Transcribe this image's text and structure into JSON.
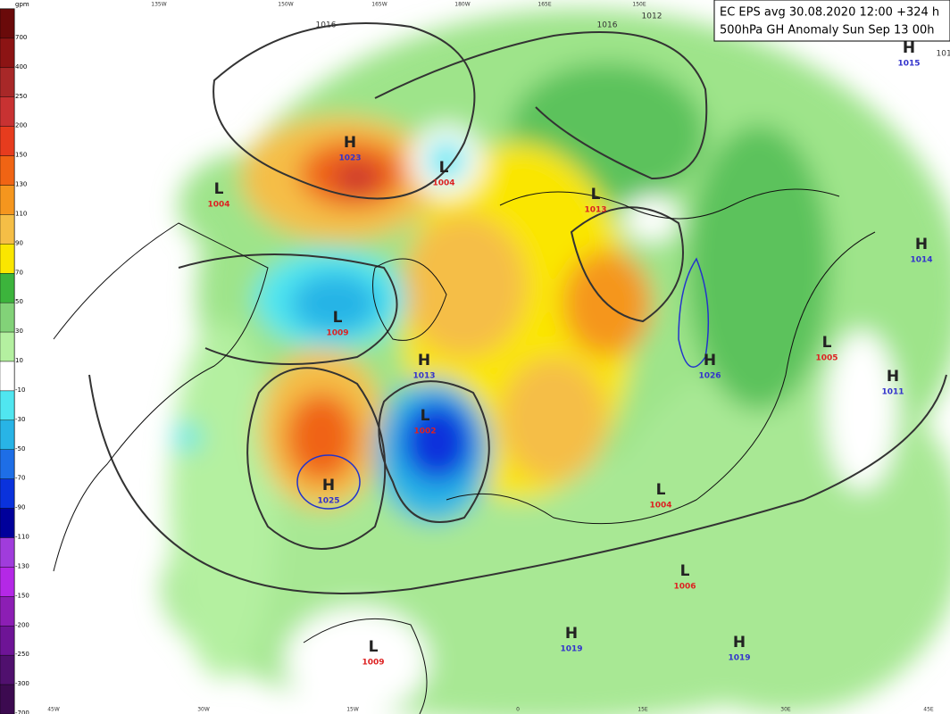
{
  "header": {
    "line1": "EC EPS avg 30.08.2020 12:00 +324 h",
    "line2": "500hPa GH Anomaly Sun Sep 13 00h"
  },
  "colorbar": {
    "unit": "gpm",
    "levels": [
      {
        "value": 700,
        "color": "#6a0a0a"
      },
      {
        "value": 400,
        "color": "#8c1414"
      },
      {
        "value": 250,
        "color": "#a82828"
      },
      {
        "value": 200,
        "color": "#c83232"
      },
      {
        "value": 150,
        "color": "#e63c1e"
      },
      {
        "value": 130,
        "color": "#f06414"
      },
      {
        "value": 110,
        "color": "#f5961e"
      },
      {
        "value": 90,
        "color": "#f5be46"
      },
      {
        "value": 70,
        "color": "#fae600"
      },
      {
        "value": 50,
        "color": "#3cb43c"
      },
      {
        "value": 30,
        "color": "#82d278"
      },
      {
        "value": 10,
        "color": "#b4f0a0"
      },
      {
        "value": -10,
        "color": "#ffffff"
      },
      {
        "value": -30,
        "color": "#50e6f0"
      },
      {
        "value": -50,
        "color": "#28b4e6"
      },
      {
        "value": -70,
        "color": "#1e6ee6"
      },
      {
        "value": -90,
        "color": "#0a32dc"
      },
      {
        "value": -110,
        "color": "#00009b"
      },
      {
        "value": -130,
        "color": "#a03cdc"
      },
      {
        "value": -150,
        "color": "#b428e6"
      },
      {
        "value": -200,
        "color": "#8c1eb4"
      },
      {
        "value": -250,
        "color": "#6e1496"
      },
      {
        "value": -300,
        "color": "#50106e"
      },
      {
        "value": -700,
        "color": "#3c0a50"
      }
    ]
  },
  "centers": [
    {
      "letter": "H",
      "value": "1023",
      "color": "#3333cc"
    },
    {
      "letter": "L",
      "value": "1004",
      "color": "#d22"
    },
    {
      "letter": "L",
      "value": "1004",
      "color": "#d22"
    },
    {
      "letter": "L",
      "value": "1013",
      "color": "#d22"
    },
    {
      "letter": "H",
      "value": "1015",
      "color": "#3333cc"
    },
    {
      "letter": "H",
      "value": "1014",
      "color": "#3333cc"
    },
    {
      "letter": "L",
      "value": "1005",
      "color": "#d22"
    },
    {
      "letter": "H",
      "value": "1011",
      "color": "#3333cc"
    },
    {
      "letter": "L",
      "value": "1009",
      "color": "#d22"
    },
    {
      "letter": "H",
      "value": "1013",
      "color": "#3333cc"
    },
    {
      "letter": "L",
      "value": "1002",
      "color": "#d22"
    },
    {
      "letter": "H",
      "value": "1025",
      "color": "#3333cc"
    },
    {
      "letter": "L",
      "value": "1004",
      "color": "#d22"
    },
    {
      "letter": "L",
      "value": "1006",
      "color": "#d22"
    },
    {
      "letter": "H",
      "value": "1019",
      "color": "#3333cc"
    },
    {
      "letter": "H",
      "value": "1019",
      "color": "#3333cc"
    },
    {
      "letter": "L",
      "value": "1009",
      "color": "#d22"
    },
    {
      "letter": "H",
      "value": "1026",
      "color": "#3333cc"
    }
  ],
  "isobar_labels": [
    "1012",
    "1016",
    "1016",
    "1012"
  ],
  "longitudes_top": [
    "135W",
    "150W",
    "165W",
    "180W",
    "165E",
    "150E"
  ],
  "longitudes_bottom": [
    "45W",
    "30W",
    "15W",
    "0",
    "15E",
    "30E",
    "45E"
  ]
}
